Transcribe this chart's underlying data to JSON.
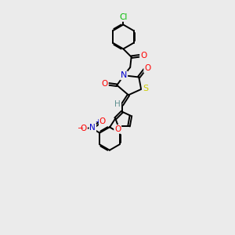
{
  "background_color": "#ebebeb",
  "bond_color": "#000000",
  "atom_colors": {
    "O": "#ff0000",
    "N": "#0000cc",
    "S": "#cccc00",
    "Cl": "#00bb00",
    "H": "#5f9090",
    "C": "#000000"
  },
  "figsize": [
    3.0,
    3.0
  ],
  "dpi": 100
}
